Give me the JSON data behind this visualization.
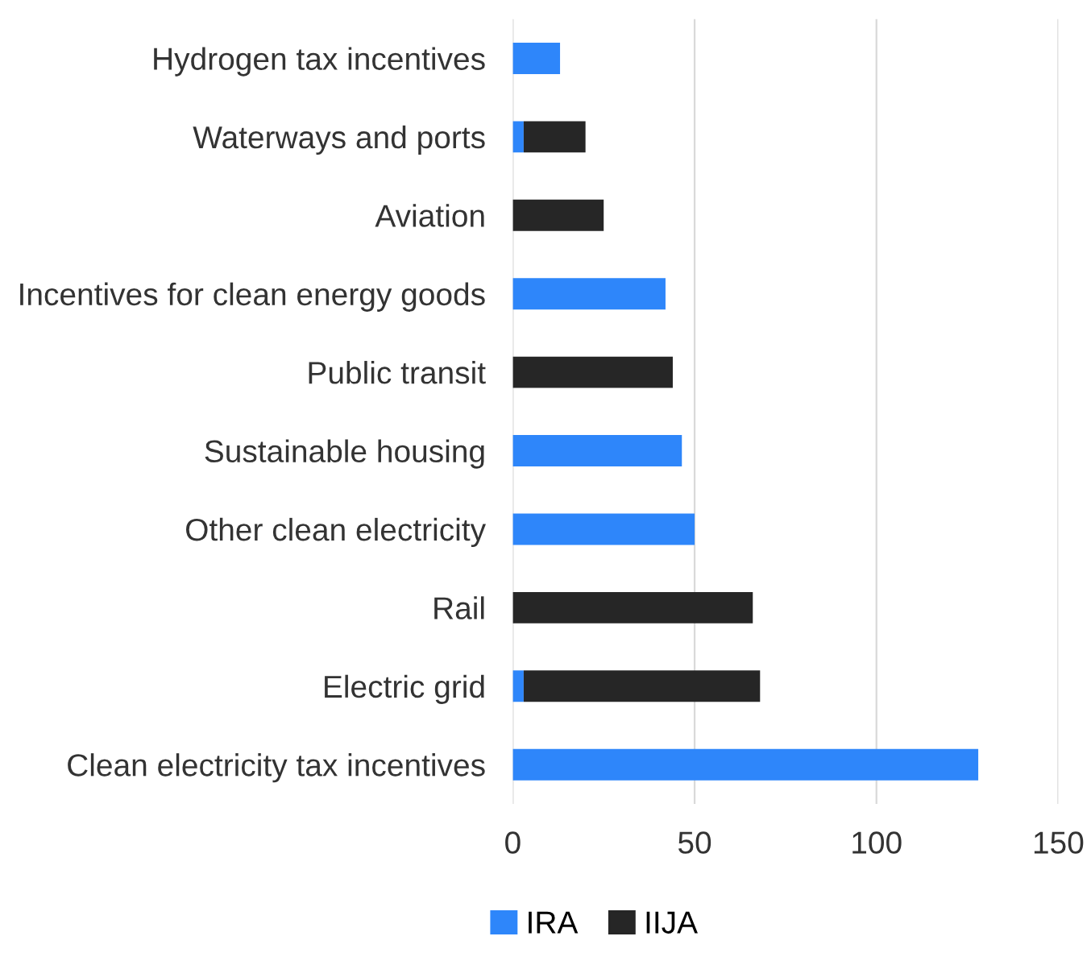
{
  "chart_data": {
    "type": "bar",
    "orientation": "horizontal",
    "stacked": true,
    "categories": [
      "Hydrogen tax incentives",
      "Waterways and ports",
      "Aviation",
      "Incentives for clean energy goods",
      "Public transit",
      "Sustainable housing",
      "Other clean electricity",
      "Rail",
      "Electric grid",
      "Clean electricity tax incentives"
    ],
    "series": [
      {
        "name": "IRA",
        "color": "#2e86fa",
        "values": [
          13,
          3,
          0,
          42,
          0,
          46.5,
          50,
          0,
          3,
          128
        ]
      },
      {
        "name": "IIJA",
        "color": "#262626",
        "values": [
          0,
          17,
          25,
          0,
          44,
          0,
          0,
          66,
          65,
          0
        ]
      }
    ],
    "xlim": [
      0,
      150
    ],
    "xticks": [
      0,
      50,
      100,
      150
    ],
    "grid": "x",
    "legend": "bottom"
  }
}
